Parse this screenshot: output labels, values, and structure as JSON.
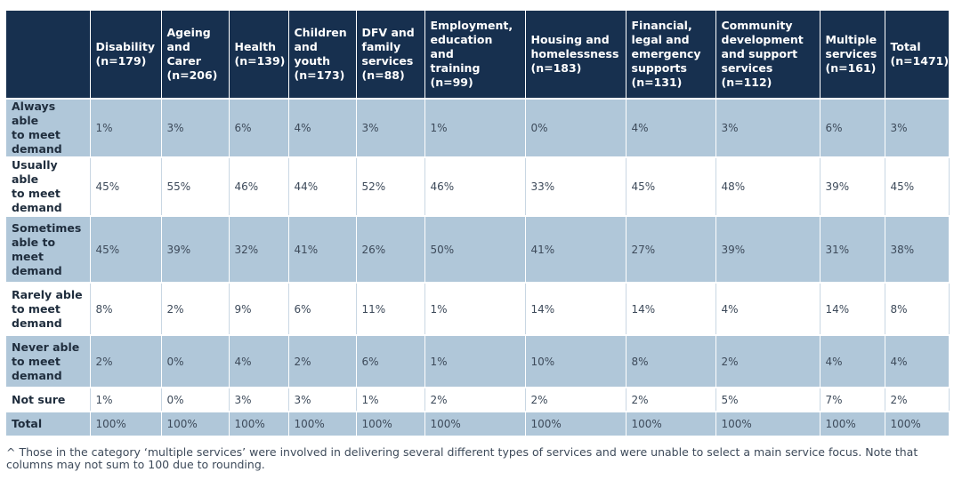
{
  "headers": [
    "",
    "Disability\n(n=179)",
    "Ageing\nand\nCarer\n(n=206)",
    "Health\n(n=139)",
    "Children\nand\nyouth\n(n=173)",
    "DFV and\nfamily\nservices\n(n=88)",
    "Employment,\neducation and\ntraining\n(n=99)",
    "Housing and\nhomelessness\n(n=183)",
    "Financial,\nlegal and\nemergency\nsupports\n(n=131)",
    "Community\ndevelopment\nand support\nservices\n(n=112)",
    "Multiple\nservices\n(n=161)",
    "Total\n(n=1471)"
  ],
  "rows": [
    {
      "label": "Always able\nto meet\ndemand",
      "values": [
        "1%",
        "3%",
        "6%",
        "4%",
        "3%",
        "1%",
        "0%",
        "4%",
        "3%",
        "6%",
        "3%"
      ]
    },
    {
      "label": "Usually able\nto meet\ndemand",
      "values": [
        "45%",
        "55%",
        "46%",
        "44%",
        "52%",
        "46%",
        "33%",
        "45%",
        "48%",
        "39%",
        "45%"
      ]
    },
    {
      "label": "Sometimes\nable to\nmeet\ndemand",
      "values": [
        "45%",
        "39%",
        "32%",
        "41%",
        "26%",
        "50%",
        "41%",
        "27%",
        "39%",
        "31%",
        "38%"
      ]
    },
    {
      "label": "Rarely able\nto meet\ndemand",
      "values": [
        "8%",
        "2%",
        "9%",
        "6%",
        "11%",
        "1%",
        "14%",
        "14%",
        "4%",
        "14%",
        "8%"
      ]
    },
    {
      "label": "Never able\nto meet\ndemand",
      "values": [
        "2%",
        "0%",
        "4%",
        "2%",
        "6%",
        "1%",
        "10%",
        "8%",
        "2%",
        "4%",
        "4%"
      ]
    },
    {
      "label": "Not sure",
      "values": [
        "1%",
        "0%",
        "3%",
        "3%",
        "1%",
        "2%",
        "2%",
        "2%",
        "5%",
        "7%",
        "2%"
      ]
    },
    {
      "label": "Total",
      "values": [
        "100%",
        "100%",
        "100%",
        "100%",
        "100%",
        "100%",
        "100%",
        "100%",
        "100%",
        "100%",
        "100%"
      ]
    }
  ],
  "footnote": "^ Those in the category ‘multiple services’ were involved in delivering several different types of services and were unable to select a main service focus. Note that columns may not sum to 100 due to rounding.",
  "colors": {
    "header_bg": "#17304f",
    "shaded_row": "#b0c7d9",
    "plain_row": "#ffffff"
  }
}
